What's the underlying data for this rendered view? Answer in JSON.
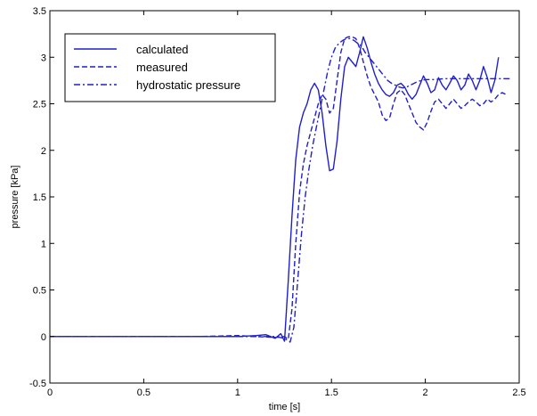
{
  "chart_data": {
    "type": "line",
    "xlabel": "time [s]",
    "ylabel": "pressure [kPa]",
    "xlim": [
      0,
      2.5
    ],
    "ylim": [
      -0.5,
      3.5
    ],
    "xticks": [
      0,
      0.5,
      1,
      1.5,
      2,
      2.5
    ],
    "xtick_labels": [
      "0",
      "0.5",
      "1",
      "1.5",
      "2",
      "2.5"
    ],
    "yticks": [
      -0.5,
      0,
      0.5,
      1,
      1.5,
      2,
      2.5,
      3,
      3.5
    ],
    "ytick_labels": [
      "-0.5",
      "0",
      "0.5",
      "1",
      "1.5",
      "2",
      "2.5",
      "3",
      "3.5"
    ],
    "grid": false,
    "legend_position": "top-left",
    "line_color": "#1f1fcc",
    "series": [
      {
        "name": "calculated",
        "style": "solid",
        "x": [
          0,
          0.2,
          0.4,
          0.6,
          0.8,
          1.0,
          1.1,
          1.15,
          1.2,
          1.23,
          1.25,
          1.27,
          1.29,
          1.31,
          1.33,
          1.35,
          1.37,
          1.39,
          1.41,
          1.43,
          1.45,
          1.47,
          1.49,
          1.51,
          1.53,
          1.55,
          1.57,
          1.59,
          1.61,
          1.63,
          1.65,
          1.67,
          1.69,
          1.71,
          1.73,
          1.75,
          1.77,
          1.79,
          1.81,
          1.83,
          1.85,
          1.87,
          1.89,
          1.91,
          1.93,
          1.95,
          1.97,
          1.99,
          2.01,
          2.03,
          2.05,
          2.07,
          2.09,
          2.11,
          2.13,
          2.15,
          2.17,
          2.19,
          2.21,
          2.23,
          2.25,
          2.27,
          2.29,
          2.31,
          2.33,
          2.35,
          2.37,
          2.39
        ],
        "y": [
          0.0,
          0.0,
          0.0,
          0.0,
          0.0,
          0.0,
          0.01,
          0.02,
          -0.02,
          0.03,
          -0.05,
          0.6,
          1.3,
          1.9,
          2.25,
          2.4,
          2.5,
          2.65,
          2.72,
          2.65,
          2.4,
          2.05,
          1.78,
          1.8,
          2.1,
          2.55,
          2.9,
          3.0,
          2.95,
          2.9,
          3.05,
          3.22,
          3.1,
          2.95,
          2.82,
          2.72,
          2.65,
          2.6,
          2.58,
          2.62,
          2.7,
          2.72,
          2.68,
          2.6,
          2.55,
          2.6,
          2.7,
          2.8,
          2.72,
          2.62,
          2.65,
          2.78,
          2.7,
          2.65,
          2.72,
          2.8,
          2.75,
          2.65,
          2.7,
          2.82,
          2.75,
          2.65,
          2.75,
          2.9,
          2.78,
          2.62,
          2.75,
          3.0
        ]
      },
      {
        "name": "measured",
        "style": "dashed",
        "x": [
          0,
          0.2,
          0.4,
          0.6,
          0.8,
          1.0,
          1.1,
          1.2,
          1.25,
          1.27,
          1.29,
          1.31,
          1.33,
          1.35,
          1.37,
          1.39,
          1.41,
          1.43,
          1.45,
          1.47,
          1.49,
          1.51,
          1.53,
          1.55,
          1.57,
          1.59,
          1.61,
          1.63,
          1.65,
          1.67,
          1.69,
          1.71,
          1.73,
          1.75,
          1.77,
          1.79,
          1.81,
          1.83,
          1.85,
          1.87,
          1.89,
          1.91,
          1.93,
          1.95,
          1.97,
          1.99,
          2.01,
          2.03,
          2.05,
          2.07,
          2.09,
          2.11,
          2.13,
          2.15,
          2.17,
          2.19,
          2.21,
          2.23,
          2.25,
          2.27,
          2.29,
          2.31,
          2.33,
          2.35,
          2.37,
          2.39,
          2.41,
          2.43
        ],
        "y": [
          0.0,
          0.0,
          0.0,
          0.0,
          0.0,
          0.01,
          0.0,
          -0.01,
          0.0,
          -0.03,
          0.3,
          1.0,
          1.55,
          1.85,
          2.05,
          2.2,
          2.35,
          2.5,
          2.6,
          2.55,
          2.4,
          2.45,
          2.75,
          3.05,
          3.2,
          3.22,
          3.22,
          3.2,
          3.1,
          2.95,
          2.8,
          2.68,
          2.6,
          2.52,
          2.38,
          2.32,
          2.35,
          2.5,
          2.62,
          2.65,
          2.6,
          2.5,
          2.4,
          2.3,
          2.25,
          2.22,
          2.3,
          2.42,
          2.52,
          2.55,
          2.5,
          2.45,
          2.5,
          2.55,
          2.5,
          2.45,
          2.48,
          2.52,
          2.55,
          2.52,
          2.48,
          2.5,
          2.55,
          2.52,
          2.55,
          2.6,
          2.62,
          2.6
        ]
      },
      {
        "name": "hydrostatic pressure",
        "style": "dashdot",
        "x": [
          0,
          0.2,
          0.4,
          0.6,
          0.8,
          1.0,
          1.1,
          1.2,
          1.25,
          1.28,
          1.3,
          1.32,
          1.34,
          1.36,
          1.38,
          1.4,
          1.42,
          1.44,
          1.46,
          1.48,
          1.5,
          1.52,
          1.54,
          1.56,
          1.58,
          1.6,
          1.62,
          1.64,
          1.66,
          1.68,
          1.7,
          1.72,
          1.74,
          1.76,
          1.78,
          1.8,
          1.82,
          1.84,
          1.86,
          1.88,
          1.9,
          1.92,
          1.94,
          1.96,
          1.98,
          2.0,
          2.05,
          2.1,
          2.15,
          2.2,
          2.25,
          2.3,
          2.35,
          2.4,
          2.45
        ],
        "y": [
          0.0,
          0.0,
          0.0,
          0.0,
          0.0,
          0.0,
          0.0,
          0.0,
          -0.02,
          -0.06,
          0.1,
          0.6,
          1.1,
          1.5,
          1.8,
          2.05,
          2.25,
          2.45,
          2.65,
          2.85,
          3.0,
          3.1,
          3.15,
          3.18,
          3.2,
          3.2,
          3.18,
          3.15,
          3.12,
          3.05,
          3.0,
          2.95,
          2.9,
          2.85,
          2.8,
          2.75,
          2.72,
          2.7,
          2.68,
          2.67,
          2.68,
          2.7,
          2.72,
          2.74,
          2.75,
          2.76,
          2.76,
          2.77,
          2.77,
          2.77,
          2.77,
          2.77,
          2.77,
          2.77,
          2.77
        ]
      }
    ]
  }
}
